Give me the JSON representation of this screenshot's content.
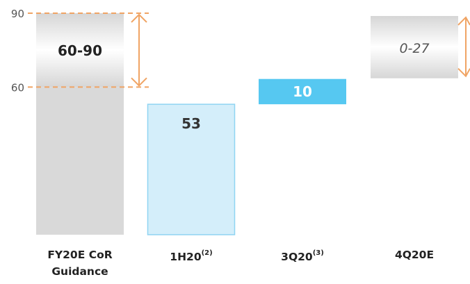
{
  "chart_data": {
    "type": "bar",
    "title": "",
    "xlabel": "",
    "ylabel": "",
    "ylim": [
      0,
      90
    ],
    "yticks": [
      60,
      90
    ],
    "grid": false,
    "categories": [
      "FY20E CoR Guidance",
      "1H20",
      "3Q20",
      "4Q20E"
    ],
    "category_labels": [
      {
        "text": "FY20E CoR",
        "line2": "Guidance",
        "sup": ""
      },
      {
        "text": "1H20",
        "line2": "",
        "sup": "(2)"
      },
      {
        "text": "3Q20",
        "line2": "",
        "sup": "(3)"
      },
      {
        "text": "4Q20E",
        "line2": "",
        "sup": ""
      }
    ],
    "bars": [
      {
        "category": "FY20E CoR Guidance",
        "kind": "range",
        "low": 60,
        "high": 90,
        "label": "60-90",
        "color": "#d9d9d9"
      },
      {
        "category": "1H20",
        "kind": "value",
        "base": 0,
        "value": 53,
        "label": "53",
        "color": "#d4eefa",
        "border": "#8fd4f2"
      },
      {
        "category": "3Q20",
        "kind": "waterfall",
        "base": 53,
        "value": 10,
        "label": "10",
        "color": "#56c8f1"
      },
      {
        "category": "4Q20E",
        "kind": "range",
        "low": 63,
        "high": 90,
        "label": "0-27",
        "color": "#d9d9d9"
      }
    ],
    "annotations": {
      "dashed_lines": [
        60,
        90
      ],
      "arrow_color": "#f0a464"
    }
  }
}
